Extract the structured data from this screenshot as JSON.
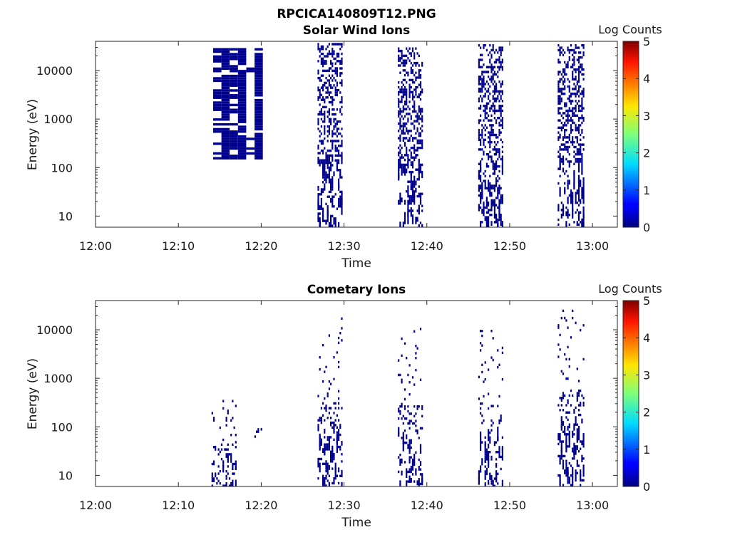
{
  "figure_title": "RPCICA140809T12.PNG",
  "colorbar_label": "Log Counts",
  "colormap": "jet",
  "fill_color": "#00008f",
  "chart_data": [
    {
      "type": "heatmap",
      "title": "Solar Wind Ions",
      "xlabel": "Time",
      "ylabel": "Energy (eV)",
      "yscale": "log",
      "xlim": [
        "12:00",
        "13:03"
      ],
      "ylim": [
        5.9,
        40000
      ],
      "x_ticks": [
        "12:00",
        "12:10",
        "12:20",
        "12:30",
        "12:40",
        "12:50",
        "13:00"
      ],
      "y_ticks": [
        "10",
        "100",
        "1000",
        "10000"
      ],
      "colorbar": {
        "range": [
          0,
          5
        ],
        "ticks": [
          "0",
          "1",
          "2",
          "3",
          "4",
          "5"
        ]
      },
      "bursts": [
        {
          "start": "12:14.2",
          "end": "12:20.2",
          "emin": 140,
          "emax": 29000,
          "value": 0
        },
        {
          "start": "12:26.8",
          "end": "12:29.9",
          "emin": 6,
          "emax": 37000,
          "value": 0
        },
        {
          "start": "12:36.5",
          "end": "12:39.6",
          "emin": 6,
          "emax": 30000,
          "value": 0
        },
        {
          "start": "12:46.2",
          "end": "12:49.3",
          "emin": 6,
          "emax": 35000,
          "value": 0
        },
        {
          "start": "12:55.8",
          "end": "12:59.0",
          "emin": 6,
          "emax": 35000,
          "value": 0
        }
      ]
    },
    {
      "type": "heatmap",
      "title": "Cometary Ions",
      "xlabel": "Time",
      "ylabel": "Energy (eV)",
      "yscale": "log",
      "xlim": [
        "12:00",
        "13:03"
      ],
      "ylim": [
        5.9,
        40000
      ],
      "x_ticks": [
        "12:00",
        "12:10",
        "12:20",
        "12:30",
        "12:40",
        "12:50",
        "13:00"
      ],
      "y_ticks": [
        "10",
        "100",
        "1000",
        "10000"
      ],
      "colorbar": {
        "range": [
          0,
          5
        ],
        "ticks": [
          "0",
          "1",
          "2",
          "3",
          "4",
          "5"
        ]
      },
      "bursts": [
        {
          "start": "12:14.0",
          "end": "12:17.0",
          "emin": 6,
          "emax": 360,
          "value": 0
        },
        {
          "start": "12:18.8",
          "end": "12:20.2",
          "emin": 50,
          "emax": 210,
          "value": 0
        },
        {
          "start": "12:26.8",
          "end": "12:29.9",
          "emin": 6,
          "emax": 18000,
          "value": 0
        },
        {
          "start": "12:36.5",
          "end": "12:39.6",
          "emin": 6,
          "emax": 11000,
          "value": 0
        },
        {
          "start": "12:46.2",
          "end": "12:49.3",
          "emin": 6,
          "emax": 10000,
          "value": 0
        },
        {
          "start": "12:55.8",
          "end": "12:59.0",
          "emin": 6,
          "emax": 26000,
          "value": 0
        }
      ]
    }
  ]
}
